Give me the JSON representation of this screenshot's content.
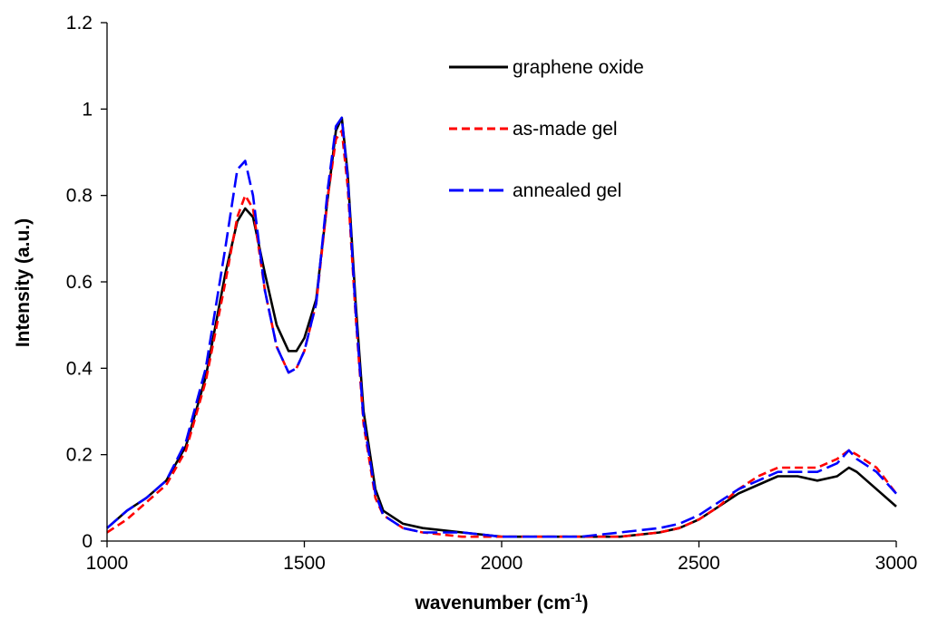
{
  "chart_data": {
    "type": "line",
    "title": "",
    "xlabel": "wavenumber (cm",
    "xlabel_sup": "-1",
    "xlabel_suffix": ")",
    "ylabel": "Intensity (a.u.)",
    "xlim": [
      1000,
      3000
    ],
    "ylim": [
      0,
      1.2
    ],
    "x_ticks": [
      "1000",
      "1500",
      "2000",
      "2500",
      "3000"
    ],
    "y_ticks": [
      "0",
      "0.2",
      "0.4",
      "0.6",
      "0.8",
      "1",
      "1.2"
    ],
    "grid": false,
    "legend_position": "top-right",
    "x": [
      1000,
      1050,
      1100,
      1150,
      1200,
      1250,
      1300,
      1330,
      1350,
      1370,
      1400,
      1430,
      1460,
      1480,
      1500,
      1530,
      1560,
      1580,
      1595,
      1610,
      1630,
      1650,
      1680,
      1700,
      1750,
      1800,
      1900,
      2000,
      2100,
      2200,
      2300,
      2400,
      2450,
      2500,
      2550,
      2600,
      2650,
      2700,
      2750,
      2800,
      2850,
      2880,
      2900,
      2950,
      3000
    ],
    "series": [
      {
        "name": "graphene oxide",
        "color": "#000000",
        "dash": "solid",
        "values": [
          0.03,
          0.07,
          0.1,
          0.14,
          0.22,
          0.38,
          0.62,
          0.74,
          0.77,
          0.75,
          0.62,
          0.5,
          0.44,
          0.44,
          0.47,
          0.56,
          0.8,
          0.95,
          0.98,
          0.85,
          0.55,
          0.3,
          0.12,
          0.07,
          0.04,
          0.03,
          0.02,
          0.01,
          0.01,
          0.01,
          0.01,
          0.02,
          0.03,
          0.05,
          0.08,
          0.11,
          0.13,
          0.15,
          0.15,
          0.14,
          0.15,
          0.17,
          0.16,
          0.12,
          0.08
        ]
      },
      {
        "name": "as-made gel",
        "color": "#ff0000",
        "dash": "dashed",
        "values": [
          0.02,
          0.05,
          0.09,
          0.13,
          0.21,
          0.37,
          0.6,
          0.75,
          0.8,
          0.77,
          0.58,
          0.45,
          0.39,
          0.4,
          0.44,
          0.55,
          0.8,
          0.93,
          0.95,
          0.82,
          0.52,
          0.27,
          0.1,
          0.06,
          0.03,
          0.02,
          0.01,
          0.01,
          0.01,
          0.01,
          0.01,
          0.02,
          0.03,
          0.05,
          0.08,
          0.12,
          0.15,
          0.17,
          0.17,
          0.17,
          0.19,
          0.21,
          0.2,
          0.17,
          0.11
        ]
      },
      {
        "name": "annealed gel",
        "color": "#0000ff",
        "dash": "longdash",
        "values": [
          0.03,
          0.07,
          0.1,
          0.14,
          0.23,
          0.4,
          0.68,
          0.86,
          0.88,
          0.8,
          0.58,
          0.45,
          0.39,
          0.4,
          0.44,
          0.55,
          0.82,
          0.96,
          0.98,
          0.84,
          0.53,
          0.28,
          0.11,
          0.06,
          0.03,
          0.02,
          0.02,
          0.01,
          0.01,
          0.01,
          0.02,
          0.03,
          0.04,
          0.06,
          0.09,
          0.12,
          0.14,
          0.16,
          0.16,
          0.16,
          0.18,
          0.21,
          0.19,
          0.16,
          0.11
        ]
      }
    ]
  }
}
